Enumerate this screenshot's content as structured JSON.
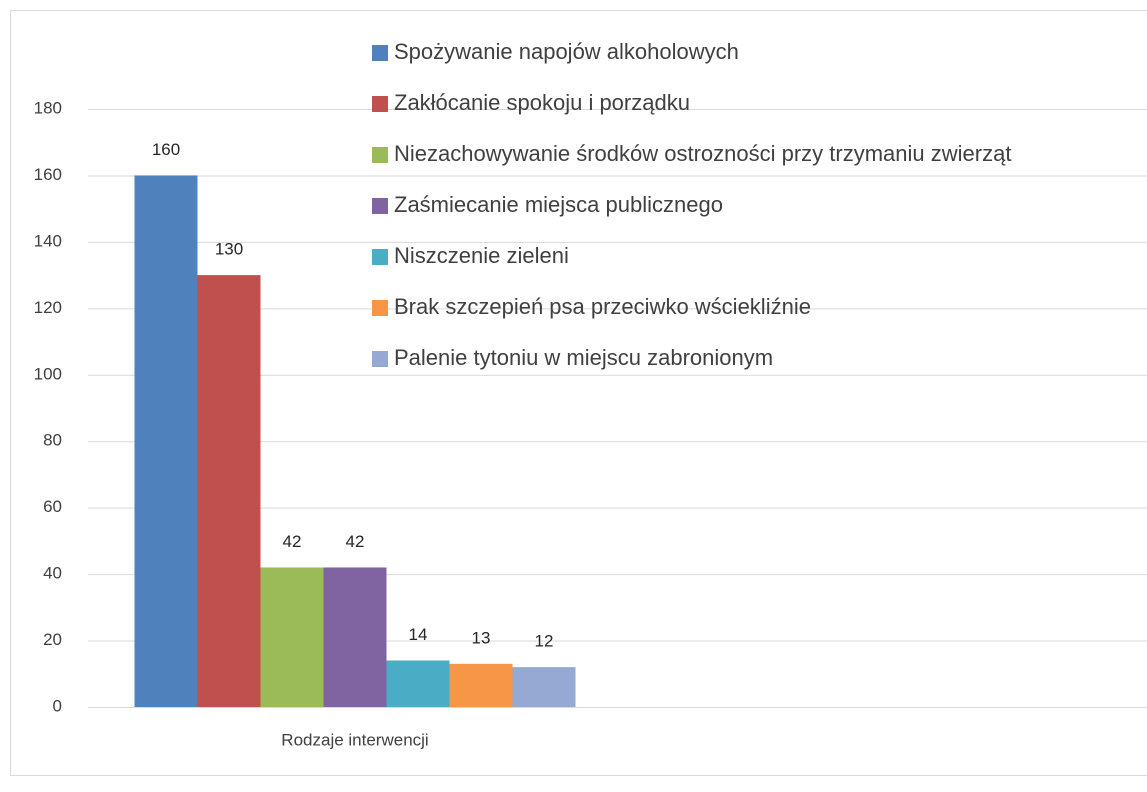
{
  "chart_data": {
    "type": "bar",
    "categories": [
      "Rodzaje interwencji"
    ],
    "series": [
      {
        "name": "Spożywanie napojów alkoholowych",
        "color": "#4f81bd",
        "values": [
          160
        ]
      },
      {
        "name": "Zakłócanie spokoju i porządku",
        "color": "#c0504d",
        "values": [
          130
        ]
      },
      {
        "name": "Niezachowywanie środków ostrozności przy trzymaniu zwierząt",
        "color": "#9bbb59",
        "values": [
          42
        ]
      },
      {
        "name": "Zaśmiecanie miejsca publicznego",
        "color": "#8064a2",
        "values": [
          42
        ]
      },
      {
        "name": "Niszczenie zieleni",
        "color": "#4bacc6",
        "values": [
          14
        ]
      },
      {
        "name": "Brak szczepień psa przeciwko wściekliźnie",
        "color": "#f79646",
        "values": [
          13
        ]
      },
      {
        "name": "Palenie tytoniu w miejscu zabronionym",
        "color": "#95a9d3",
        "values": [
          12
        ]
      }
    ],
    "ylim": [
      0,
      180
    ],
    "yticks": [
      0,
      20,
      40,
      60,
      80,
      100,
      120,
      140,
      160,
      180
    ],
    "grid": true,
    "legend": "top",
    "data_labels": true
  }
}
